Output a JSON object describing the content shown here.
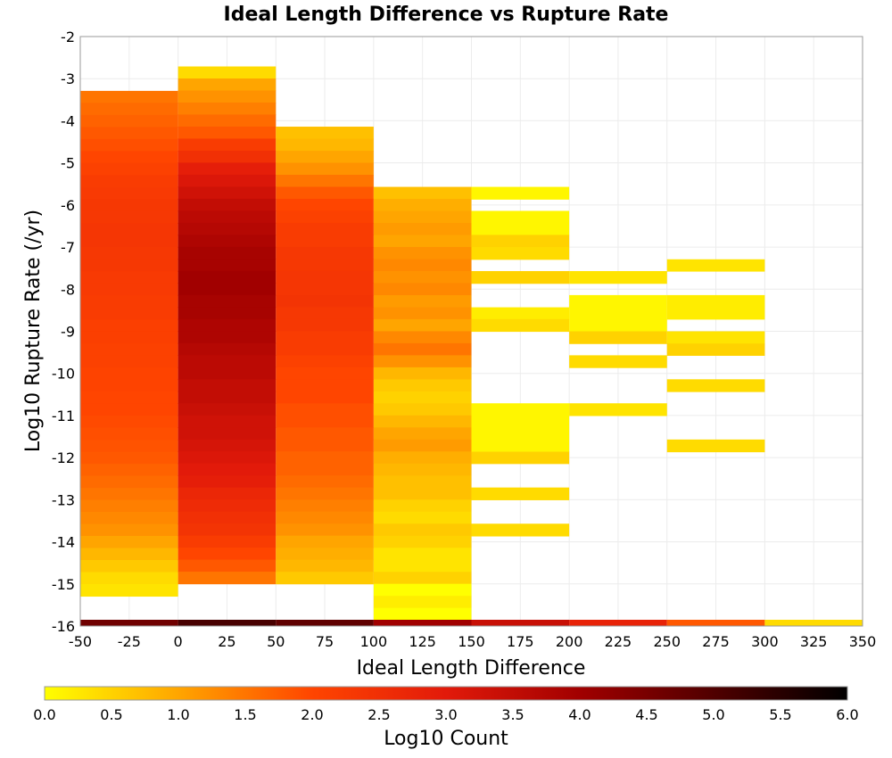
{
  "chart_data": {
    "type": "heatmap",
    "title": "Ideal Length Difference vs Rupture Rate",
    "xlabel": "Ideal Length Difference",
    "ylabel": "Log10 Rupture Rate (/yr)",
    "xlim": [
      -50,
      350
    ],
    "ylim": [
      -16,
      -2
    ],
    "x_ticks": [
      "-50",
      "-25",
      "0",
      "25",
      "50",
      "75",
      "100",
      "125",
      "150",
      "175",
      "200",
      "225",
      "250",
      "275",
      "300",
      "325",
      "350"
    ],
    "y_ticks": [
      "-2",
      "-3",
      "-4",
      "-5",
      "-6",
      "-7",
      "-8",
      "-9",
      "-10",
      "-11",
      "-12",
      "-13",
      "-14",
      "-15",
      "-16"
    ],
    "grid": true,
    "x_bin_width": 50,
    "y_bin_height": 0.2857,
    "colorbar": {
      "label": "Log10 Count",
      "range": [
        0,
        6
      ],
      "ticks": [
        "0.0",
        "0.5",
        "1.0",
        "1.5",
        "2.0",
        "2.5",
        "3.0",
        "3.5",
        "4.0",
        "4.5",
        "5.0",
        "5.5",
        "6.0"
      ],
      "colors": [
        "#ffff00",
        "#ffa500",
        "#ff4500",
        "#e21a0a",
        "#a10000",
        "#500000",
        "#000000"
      ]
    },
    "columns": [
      {
        "x": -50,
        "top": -3.29,
        "values": [
          1.5,
          1.6,
          1.7,
          1.8,
          1.9,
          2.0,
          2.1,
          2.2,
          2.25,
          2.3,
          2.3,
          2.35,
          2.35,
          2.3,
          2.3,
          2.25,
          2.25,
          2.2,
          2.2,
          2.15,
          2.15,
          2.1,
          2.1,
          2.05,
          2.05,
          2.0,
          2.0,
          1.95,
          1.9,
          1.85,
          1.8,
          1.7,
          1.6,
          1.5,
          1.4,
          1.3,
          1.2,
          1.0,
          0.8,
          0.6,
          0.4,
          0.3
        ]
      },
      {
        "x": 0,
        "top": -2.71,
        "values": [
          0.4,
          1.0,
          1.2,
          1.4,
          1.6,
          1.8,
          2.2,
          2.5,
          2.9,
          3.1,
          3.3,
          3.5,
          3.6,
          3.7,
          3.8,
          3.9,
          3.9,
          4.0,
          4.0,
          3.9,
          3.9,
          3.8,
          3.8,
          3.7,
          3.6,
          3.6,
          3.5,
          3.5,
          3.4,
          3.3,
          3.3,
          3.2,
          3.1,
          3.0,
          2.9,
          2.7,
          2.6,
          2.5,
          2.4,
          2.2,
          2.0,
          1.8,
          1.5
        ]
      },
      {
        "x": 50,
        "top": -4.14,
        "values": [
          0.7,
          0.8,
          1.0,
          1.2,
          1.5,
          1.8,
          2.0,
          2.1,
          2.2,
          2.2,
          2.3,
          2.3,
          2.35,
          2.35,
          2.4,
          2.3,
          2.3,
          2.2,
          2.2,
          2.1,
          2.0,
          2.0,
          2.0,
          1.9,
          1.9,
          1.8,
          1.8,
          1.7,
          1.7,
          1.6,
          1.5,
          1.4,
          1.3,
          1.2,
          1.0,
          0.9,
          0.8,
          0.6
        ]
      },
      {
        "x": 100,
        "top": -5.57,
        "values": [
          0.7,
          0.9,
          1.0,
          1.1,
          1.0,
          1.2,
          1.3,
          1.2,
          1.3,
          1.1,
          1.2,
          1.0,
          1.3,
          1.5,
          1.2,
          0.8,
          0.6,
          0.5,
          0.6,
          0.8,
          1.0,
          1.1,
          0.9,
          0.8,
          0.7,
          0.7,
          0.5,
          0.4,
          0.6,
          0.5,
          0.3,
          0.3,
          0.5,
          0.0,
          0.2,
          0.0
        ]
      },
      {
        "x": 150,
        "blocks": [
          {
            "top": -5.57,
            "bottom": -5.86,
            "value": 0.1
          },
          {
            "top": -6.14,
            "bottom": -6.71,
            "value": 0.1
          },
          {
            "top": -6.71,
            "bottom": -7.0,
            "value": 0.5
          },
          {
            "top": -7.0,
            "bottom": -7.29,
            "value": 0.4
          },
          {
            "top": -7.57,
            "bottom": -7.86,
            "value": 0.5
          },
          {
            "top": -8.43,
            "bottom": -8.71,
            "value": 0.2
          },
          {
            "top": -8.71,
            "bottom": -9.0,
            "value": 0.4
          },
          {
            "top": -10.71,
            "bottom": -11.86,
            "value": 0.1
          },
          {
            "top": -11.86,
            "bottom": -12.14,
            "value": 0.5
          },
          {
            "top": -12.71,
            "bottom": -13.0,
            "value": 0.4
          },
          {
            "top": -13.57,
            "bottom": -13.86,
            "value": 0.4
          }
        ]
      },
      {
        "x": 200,
        "blocks": [
          {
            "top": -7.57,
            "bottom": -7.86,
            "value": 0.3
          },
          {
            "top": -8.14,
            "bottom": -8.43,
            "value": 0.1
          },
          {
            "top": -8.43,
            "bottom": -9.0,
            "value": 0.1
          },
          {
            "top": -9.0,
            "bottom": -9.29,
            "value": 0.5
          },
          {
            "top": -9.57,
            "bottom": -9.86,
            "value": 0.4
          },
          {
            "top": -10.71,
            "bottom": -11.0,
            "value": 0.3
          }
        ]
      },
      {
        "x": 250,
        "blocks": [
          {
            "top": -7.29,
            "bottom": -7.57,
            "value": 0.3
          },
          {
            "top": -8.14,
            "bottom": -8.71,
            "value": 0.2
          },
          {
            "top": -9.0,
            "bottom": -9.29,
            "value": 0.3
          },
          {
            "top": -9.29,
            "bottom": -9.57,
            "value": 0.5
          },
          {
            "top": -10.14,
            "bottom": -10.43,
            "value": 0.4
          },
          {
            "top": -11.57,
            "bottom": -11.86,
            "value": 0.4
          }
        ]
      }
    ],
    "bottom_row": {
      "y": -16,
      "values": [
        {
          "x": -50,
          "value": 4.6
        },
        {
          "x": 0,
          "value": 5.1
        },
        {
          "x": 50,
          "value": 4.8
        },
        {
          "x": 100,
          "value": 4.0
        },
        {
          "x": 150,
          "value": 3.4
        },
        {
          "x": 200,
          "value": 2.8
        },
        {
          "x": 250,
          "value": 1.8
        },
        {
          "x": 300,
          "value": 0.4
        }
      ]
    }
  }
}
